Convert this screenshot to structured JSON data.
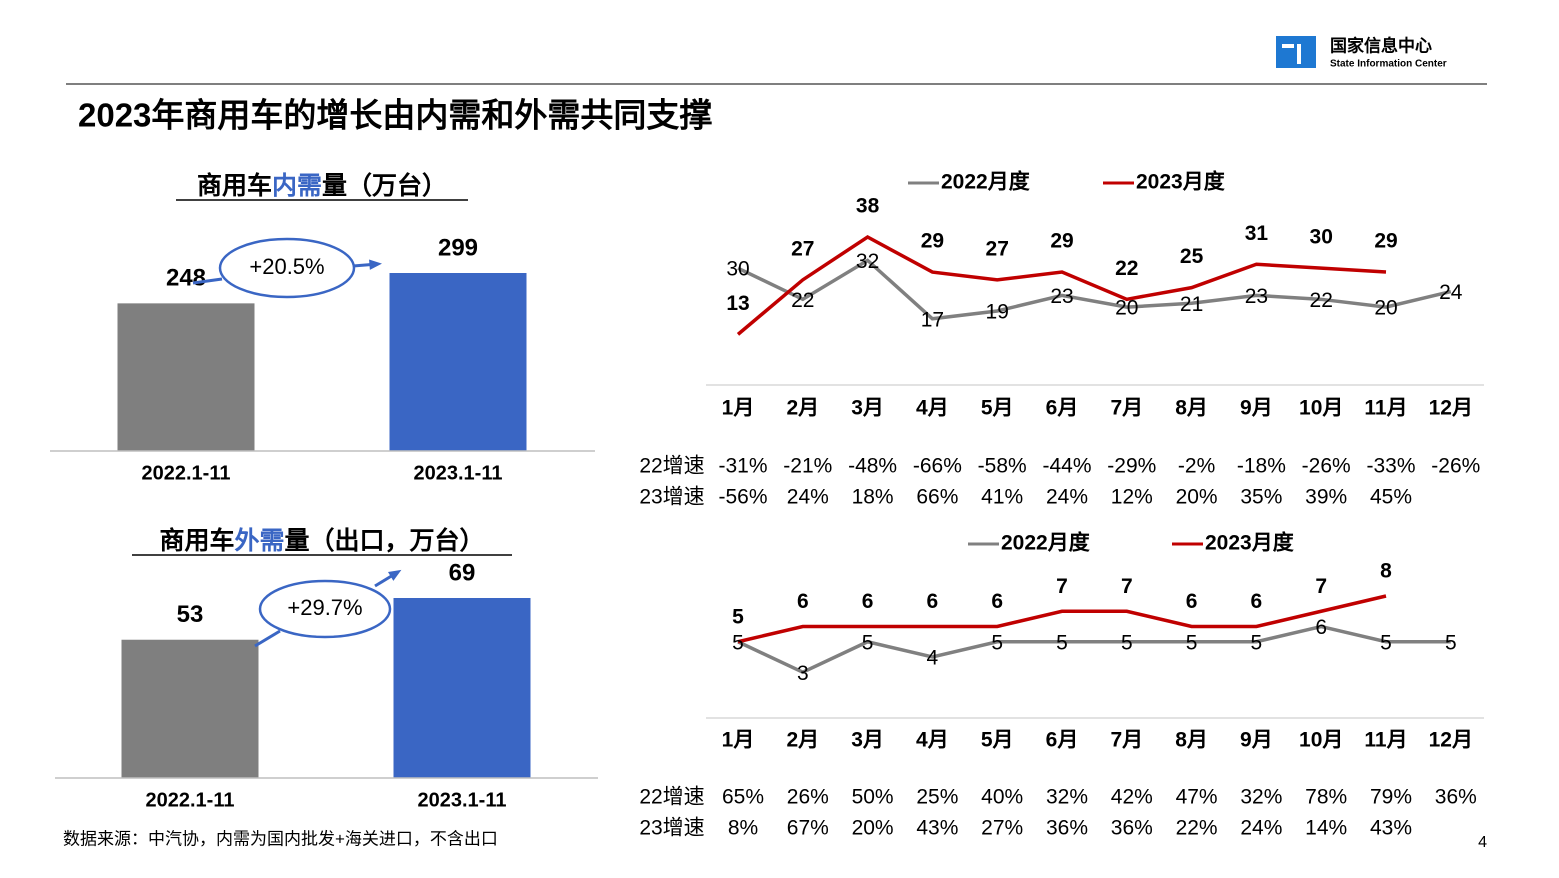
{
  "header": {
    "logo_cn": "国家信息中心",
    "logo_en": "State Information Center"
  },
  "title": "2023年商用车的增长由内需和外需共同支撑",
  "chart_data": [
    {
      "type": "bar",
      "title": [
        "商用车",
        "内需",
        "量（万台）"
      ],
      "annotation": "+20.5%",
      "categories": [
        "2022.1-11",
        "2023.1-11"
      ],
      "values": [
        248,
        299
      ],
      "colors": [
        "#7f7f7f",
        "#3a66c4"
      ]
    },
    {
      "type": "bar",
      "title": [
        "商用车",
        "外需",
        "量（出口，万台）"
      ],
      "annotation": "+29.7%",
      "categories": [
        "2022.1-11",
        "2023.1-11"
      ],
      "values": [
        53,
        69
      ],
      "colors": [
        "#7f7f7f",
        "#3a66c4"
      ]
    },
    {
      "type": "line",
      "categories": [
        "1月",
        "2月",
        "3月",
        "4月",
        "5月",
        "6月",
        "7月",
        "8月",
        "9月",
        "10月",
        "11月",
        "12月"
      ],
      "series": [
        {
          "name": "2022月度",
          "color": "#808080",
          "values": [
            30,
            22,
            32,
            17,
            19,
            23,
            20,
            21,
            23,
            22,
            20,
            24
          ]
        },
        {
          "name": "2023月度",
          "color": "#c00000",
          "values": [
            13,
            27,
            38,
            29,
            27,
            29,
            22,
            25,
            31,
            30,
            29,
            null
          ]
        }
      ],
      "growth_rates": [
        {
          "name": "22增速",
          "values": [
            "-31%",
            "-21%",
            "-48%",
            "-66%",
            "-58%",
            "-44%",
            "-29%",
            "-2%",
            "-18%",
            "-26%",
            "-33%",
            "-26%"
          ]
        },
        {
          "name": "23增速",
          "values": [
            "-56%",
            "24%",
            "18%",
            "66%",
            "41%",
            "24%",
            "12%",
            "20%",
            "35%",
            "39%",
            "45%"
          ]
        }
      ]
    },
    {
      "type": "line",
      "categories": [
        "1月",
        "2月",
        "3月",
        "4月",
        "5月",
        "6月",
        "7月",
        "8月",
        "9月",
        "10月",
        "11月",
        "12月"
      ],
      "series": [
        {
          "name": "2022月度",
          "color": "#808080",
          "values": [
            5,
            3,
            5,
            4,
            5,
            5,
            5,
            5,
            5,
            6,
            5,
            5
          ]
        },
        {
          "name": "2023月度",
          "color": "#c00000",
          "values": [
            5,
            6,
            6,
            6,
            6,
            7,
            7,
            6,
            6,
            7,
            8,
            null
          ]
        }
      ],
      "growth_rates": [
        {
          "name": "22增速",
          "values": [
            "65%",
            "26%",
            "50%",
            "25%",
            "40%",
            "32%",
            "42%",
            "47%",
            "32%",
            "78%",
            "79%",
            "36%"
          ]
        },
        {
          "name": "23增速",
          "values": [
            "8%",
            "67%",
            "20%",
            "43%",
            "27%",
            "36%",
            "36%",
            "22%",
            "24%",
            "14%",
            "43%"
          ]
        }
      ]
    }
  ],
  "footnote": "数据来源：中汽协，内需为国内批发+海关进口，不含出口",
  "page_number": 4
}
